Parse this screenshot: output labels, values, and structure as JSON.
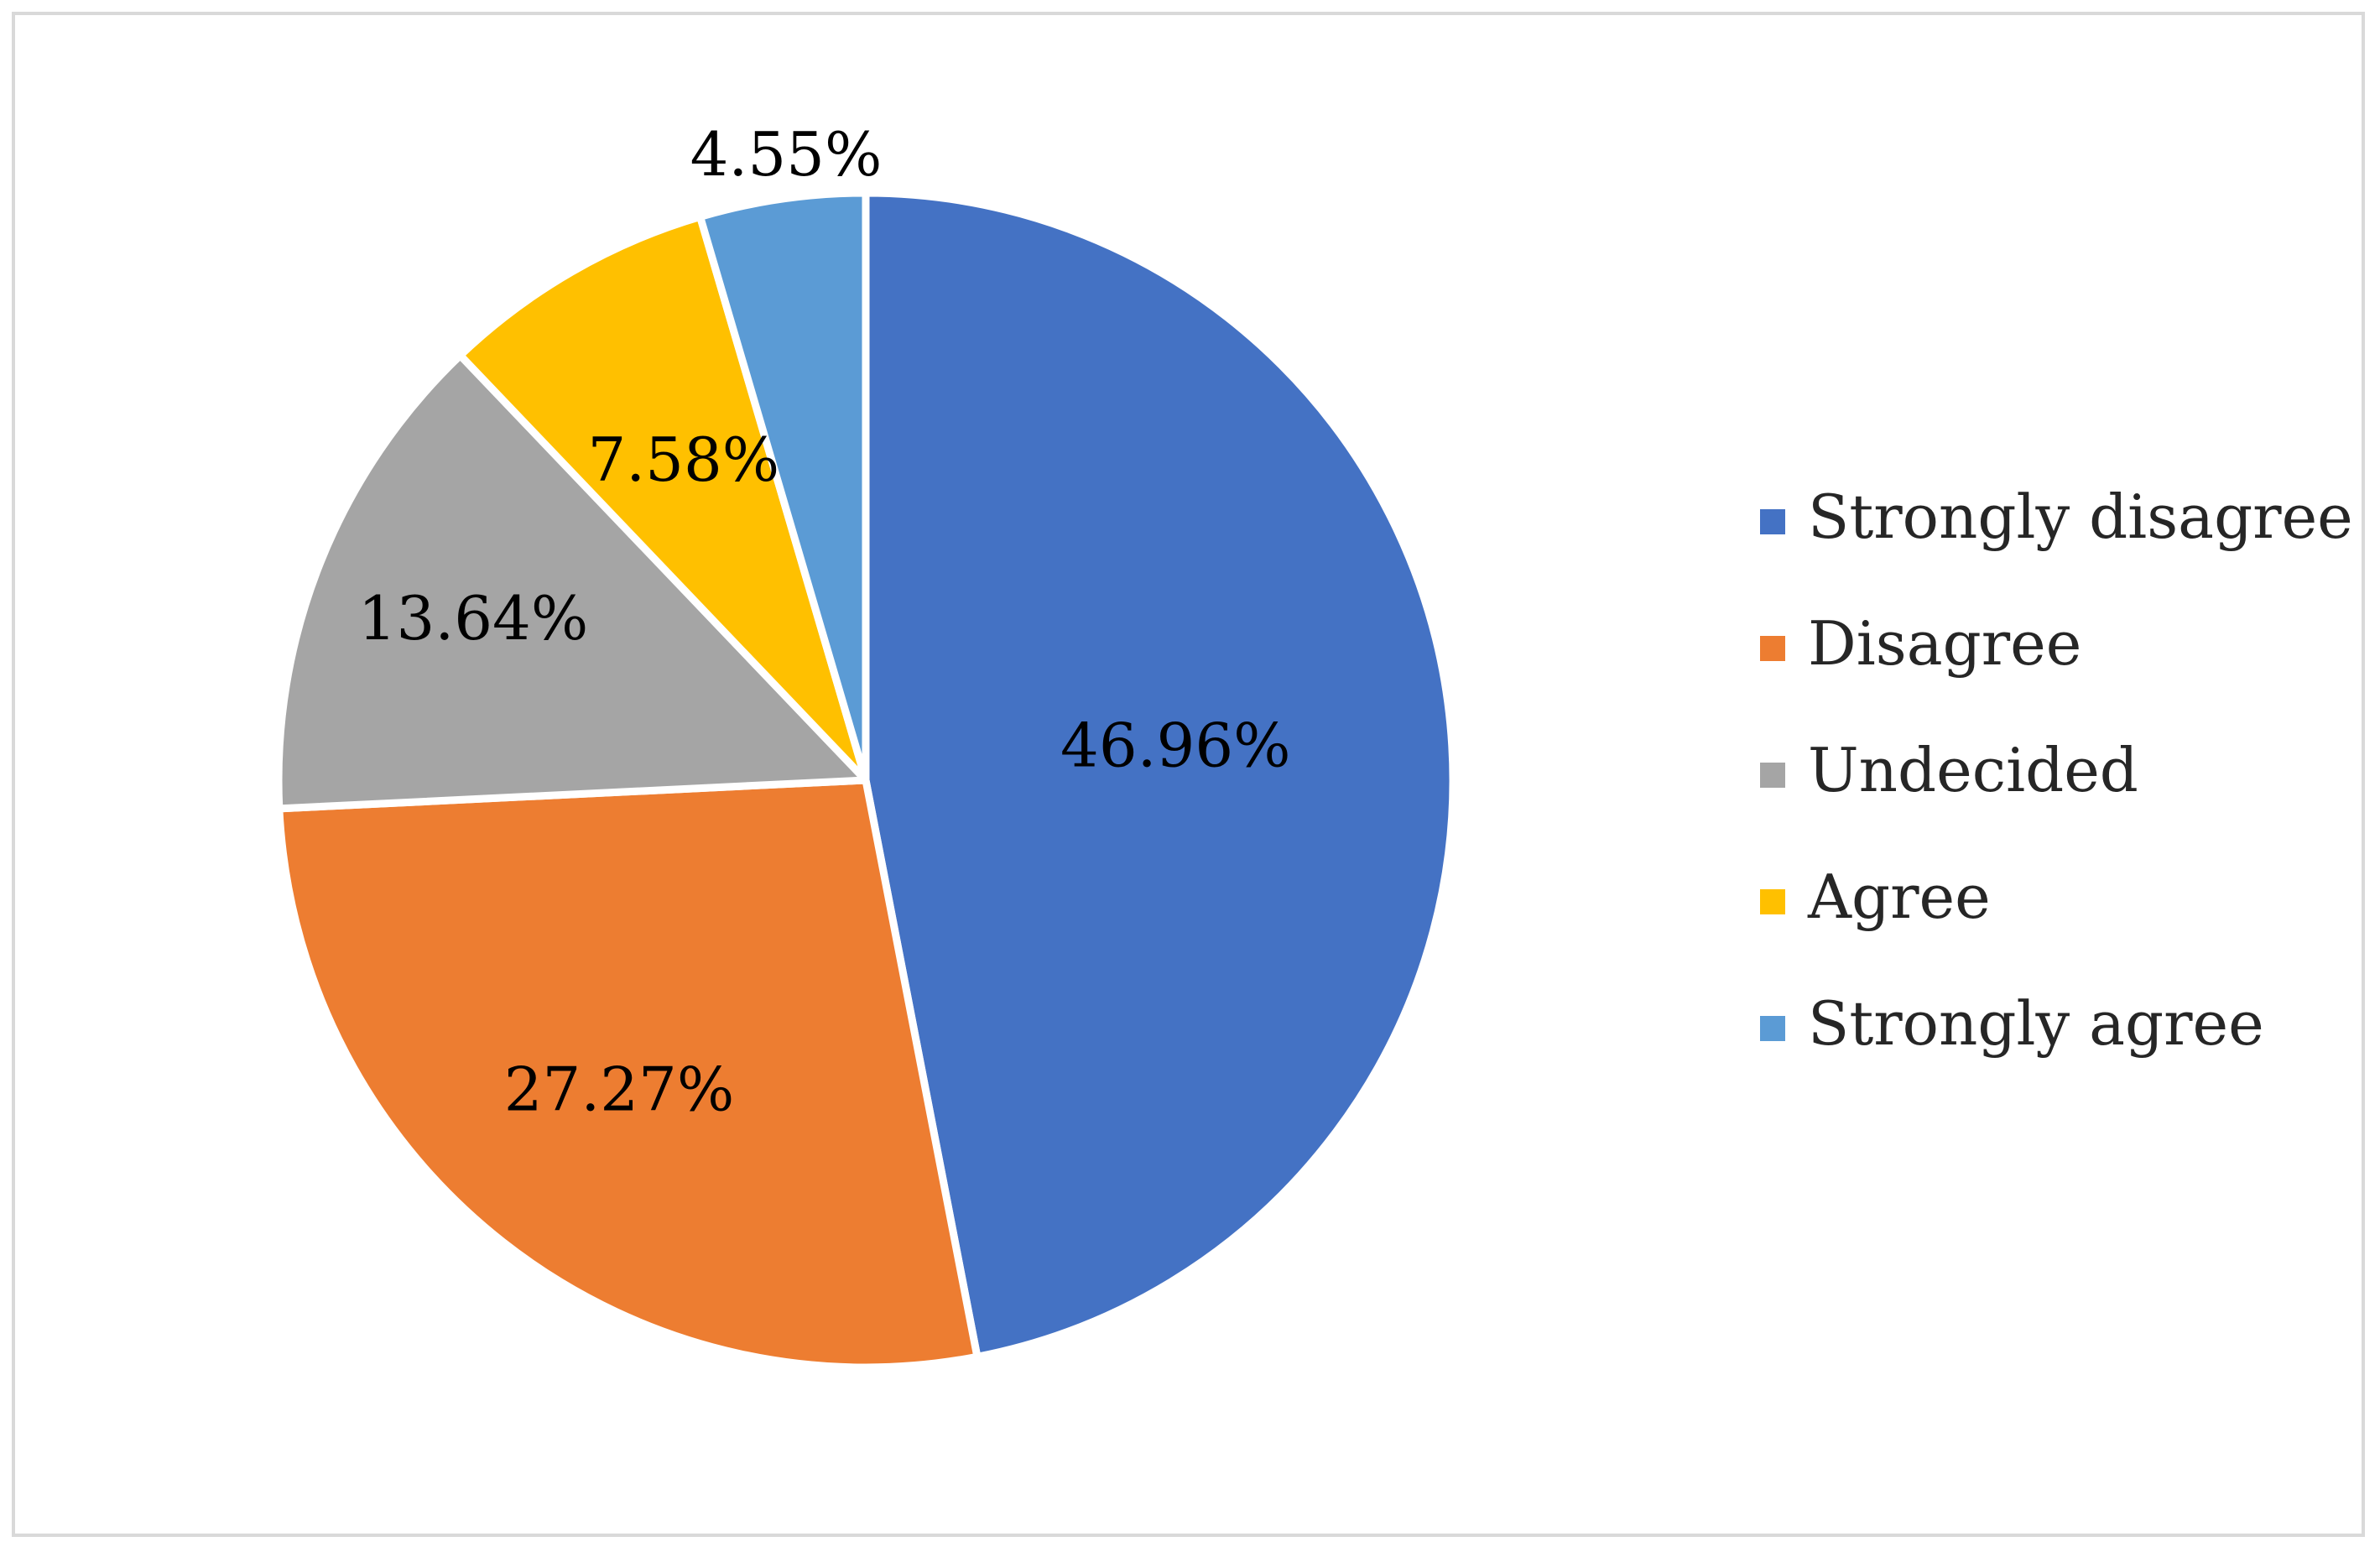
{
  "chart_data": {
    "type": "pie",
    "title": "",
    "categories": [
      "Strongly disagree",
      "Disagree",
      "Undecided",
      "Agree",
      "Strongly agree"
    ],
    "values": [
      46.96,
      27.27,
      13.64,
      7.58,
      4.55
    ],
    "labels": [
      "46.96%",
      "27.27%",
      "13.64%",
      "7.58%",
      "4.55%"
    ],
    "colors": [
      "#4472C4",
      "#ED7D31",
      "#A5A5A5",
      "#FFC000",
      "#5B9BD5"
    ],
    "start_angle": "12 o'clock",
    "direction": "clockwise",
    "legend_position": "right"
  }
}
